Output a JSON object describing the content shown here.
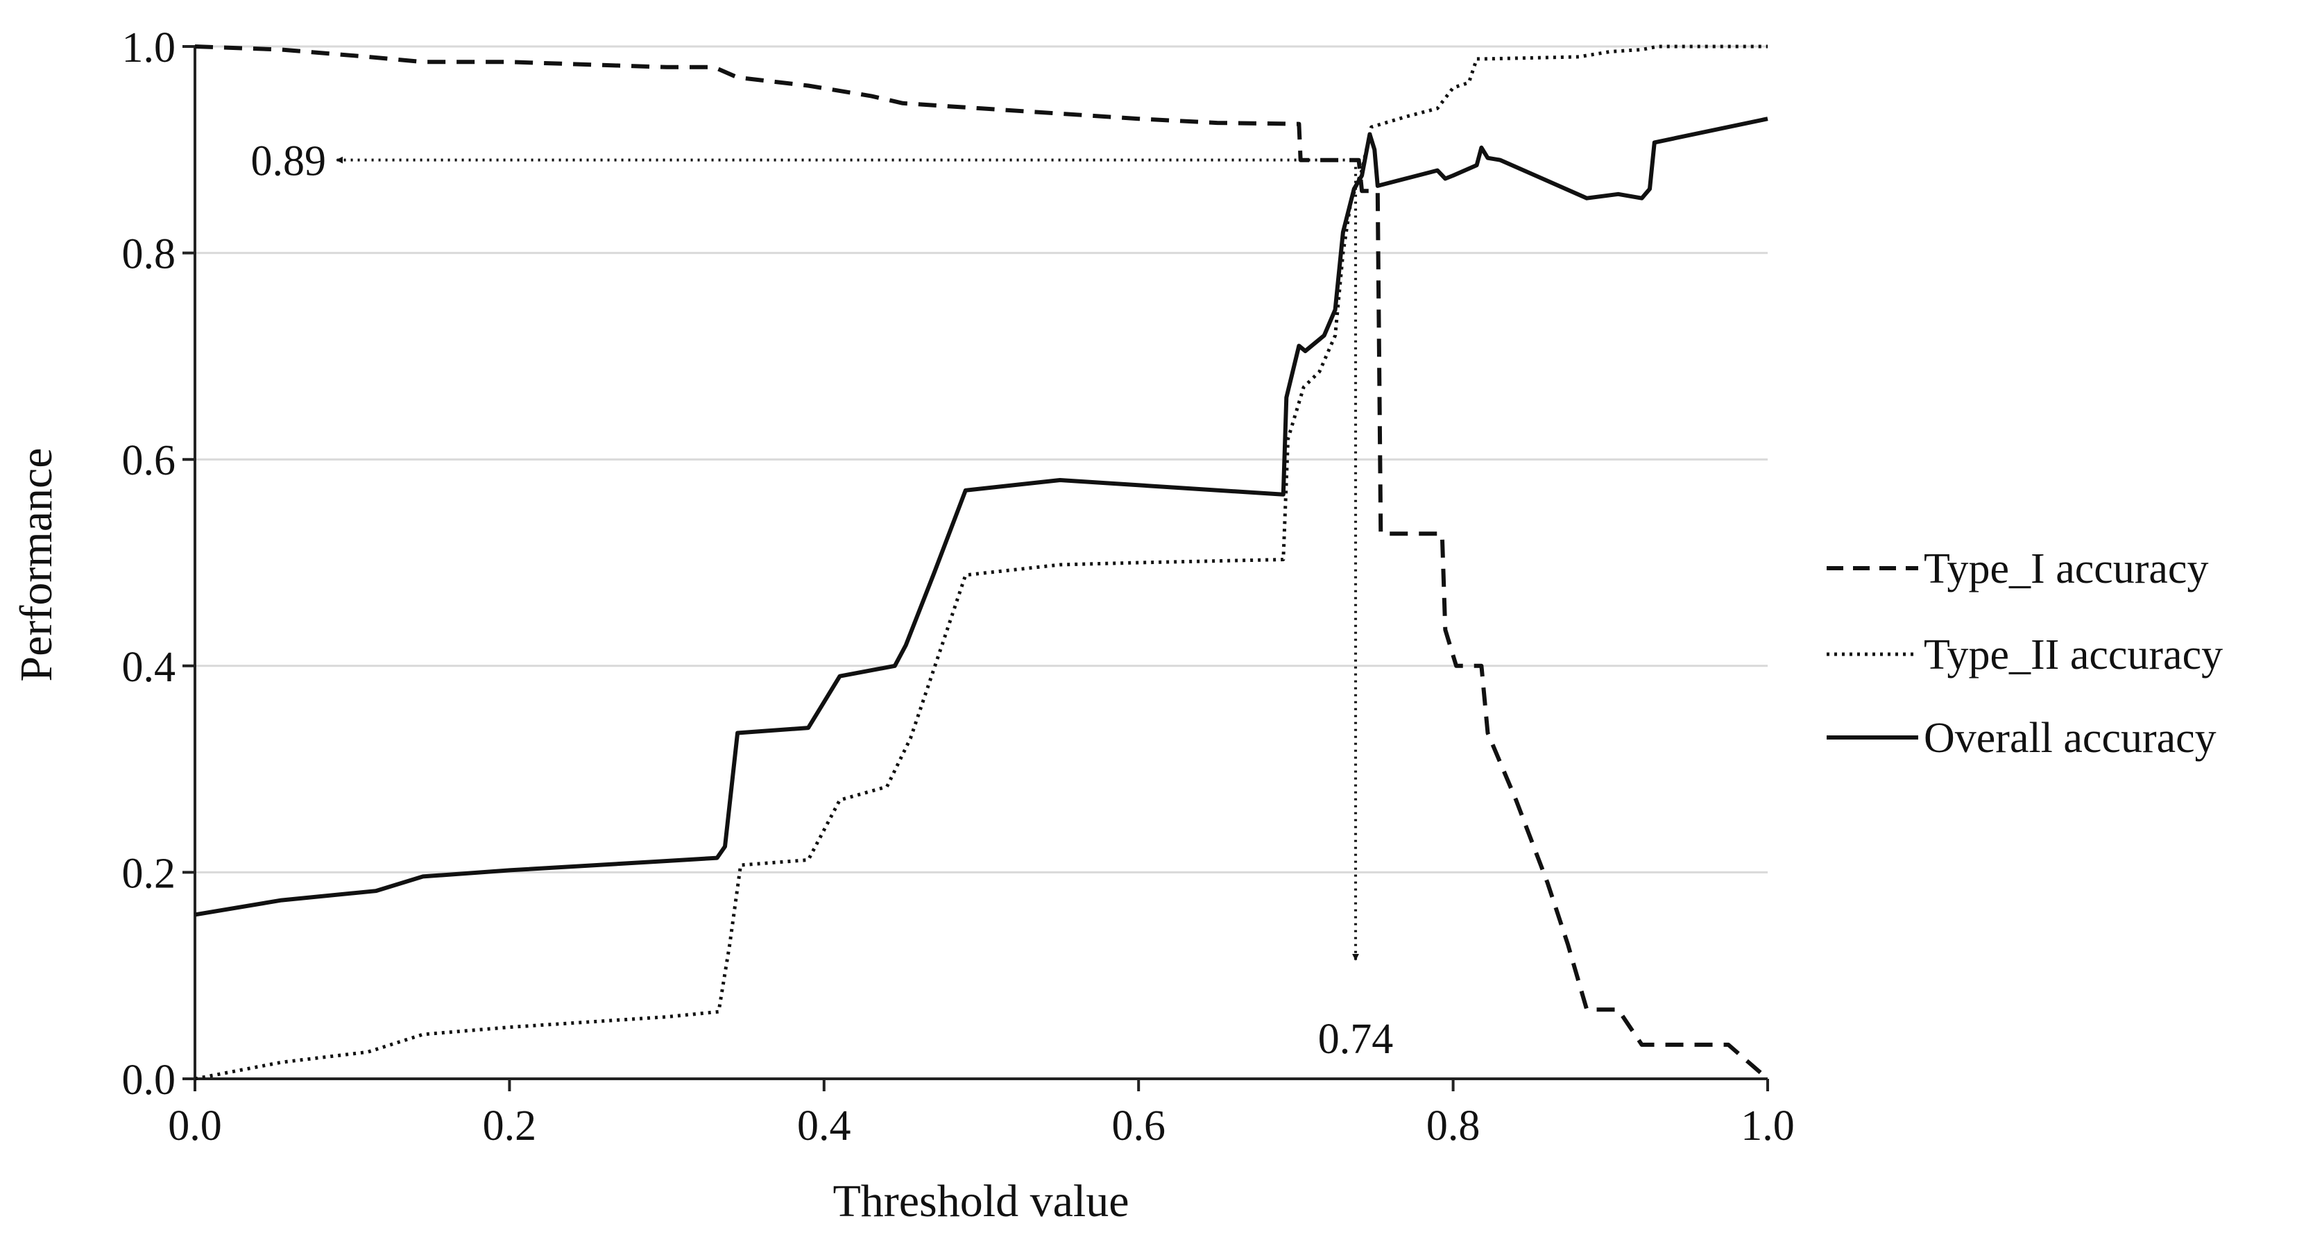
{
  "chart_data": {
    "type": "line",
    "title": "",
    "xlabel": "Threshold value",
    "ylabel": "Performance",
    "xlim": [
      0.0,
      1.0
    ],
    "ylim": [
      0.0,
      1.0
    ],
    "xticks": [
      0.0,
      0.2,
      0.4,
      0.6,
      0.8,
      1.0
    ],
    "yticks": [
      0.0,
      0.2,
      0.4,
      0.6,
      0.8,
      1.0
    ],
    "xtick_labels": [
      "0.0",
      "0.2",
      "0.4",
      "0.6",
      "0.8",
      "1.0"
    ],
    "ytick_labels": [
      "0.0",
      "0.2",
      "0.4",
      "0.6",
      "0.8",
      "1.0"
    ],
    "grid": "horizontal",
    "legend_position": "right",
    "colors": {
      "line": "#111111",
      "grid": "#d9d9d9",
      "axis": "#222222"
    },
    "series": [
      {
        "name": "Type_I accuracy",
        "style": "dashed",
        "points": [
          [
            0.0,
            1.0
          ],
          [
            0.055,
            0.997
          ],
          [
            0.11,
            0.99
          ],
          [
            0.145,
            0.985
          ],
          [
            0.2,
            0.985
          ],
          [
            0.3,
            0.98
          ],
          [
            0.33,
            0.98
          ],
          [
            0.345,
            0.97
          ],
          [
            0.39,
            0.962
          ],
          [
            0.43,
            0.952
          ],
          [
            0.45,
            0.945
          ],
          [
            0.5,
            0.94
          ],
          [
            0.6,
            0.93
          ],
          [
            0.65,
            0.926
          ],
          [
            0.7,
            0.925
          ],
          [
            0.702,
            0.925
          ],
          [
            0.703,
            0.89
          ],
          [
            0.74,
            0.89
          ],
          [
            0.742,
            0.86
          ],
          [
            0.752,
            0.86
          ],
          [
            0.754,
            0.528
          ],
          [
            0.793,
            0.528
          ],
          [
            0.795,
            0.435
          ],
          [
            0.802,
            0.4
          ],
          [
            0.818,
            0.4
          ],
          [
            0.822,
            0.335
          ],
          [
            0.84,
            0.27
          ],
          [
            0.86,
            0.19
          ],
          [
            0.873,
            0.13
          ],
          [
            0.885,
            0.067
          ],
          [
            0.905,
            0.067
          ],
          [
            0.92,
            0.033
          ],
          [
            0.975,
            0.033
          ],
          [
            1.0,
            0.0
          ]
        ]
      },
      {
        "name": "Type_II accuracy",
        "style": "dotted",
        "points": [
          [
            0.0,
            0.0
          ],
          [
            0.055,
            0.016
          ],
          [
            0.11,
            0.026
          ],
          [
            0.145,
            0.043
          ],
          [
            0.2,
            0.05
          ],
          [
            0.3,
            0.06
          ],
          [
            0.333,
            0.065
          ],
          [
            0.34,
            0.13
          ],
          [
            0.347,
            0.207
          ],
          [
            0.39,
            0.212
          ],
          [
            0.41,
            0.27
          ],
          [
            0.44,
            0.283
          ],
          [
            0.455,
            0.33
          ],
          [
            0.475,
            0.42
          ],
          [
            0.49,
            0.488
          ],
          [
            0.55,
            0.498
          ],
          [
            0.6,
            0.5
          ],
          [
            0.692,
            0.503
          ],
          [
            0.695,
            0.62
          ],
          [
            0.705,
            0.67
          ],
          [
            0.715,
            0.685
          ],
          [
            0.725,
            0.72
          ],
          [
            0.73,
            0.8
          ],
          [
            0.735,
            0.85
          ],
          [
            0.742,
            0.88
          ],
          [
            0.748,
            0.922
          ],
          [
            0.77,
            0.932
          ],
          [
            0.79,
            0.94
          ],
          [
            0.8,
            0.96
          ],
          [
            0.81,
            0.965
          ],
          [
            0.815,
            0.988
          ],
          [
            0.82,
            0.988
          ],
          [
            0.88,
            0.99
          ],
          [
            0.9,
            0.995
          ],
          [
            0.92,
            0.997
          ],
          [
            0.93,
            1.0
          ],
          [
            1.0,
            1.0
          ]
        ]
      },
      {
        "name": "Overall accuracy",
        "style": "solid",
        "points": [
          [
            0.0,
            0.159
          ],
          [
            0.055,
            0.173
          ],
          [
            0.115,
            0.182
          ],
          [
            0.145,
            0.196
          ],
          [
            0.2,
            0.202
          ],
          [
            0.3,
            0.211
          ],
          [
            0.332,
            0.214
          ],
          [
            0.337,
            0.225
          ],
          [
            0.345,
            0.335
          ],
          [
            0.39,
            0.34
          ],
          [
            0.41,
            0.39
          ],
          [
            0.445,
            0.4
          ],
          [
            0.452,
            0.42
          ],
          [
            0.47,
            0.49
          ],
          [
            0.49,
            0.57
          ],
          [
            0.55,
            0.58
          ],
          [
            0.692,
            0.566
          ],
          [
            0.694,
            0.66
          ],
          [
            0.702,
            0.71
          ],
          [
            0.706,
            0.705
          ],
          [
            0.718,
            0.72
          ],
          [
            0.725,
            0.745
          ],
          [
            0.73,
            0.82
          ],
          [
            0.737,
            0.862
          ],
          [
            0.742,
            0.875
          ],
          [
            0.747,
            0.915
          ],
          [
            0.75,
            0.9
          ],
          [
            0.752,
            0.865
          ],
          [
            0.79,
            0.88
          ],
          [
            0.795,
            0.872
          ],
          [
            0.8,
            0.875
          ],
          [
            0.815,
            0.885
          ],
          [
            0.818,
            0.902
          ],
          [
            0.822,
            0.892
          ],
          [
            0.83,
            0.89
          ],
          [
            0.885,
            0.853
          ],
          [
            0.905,
            0.857
          ],
          [
            0.92,
            0.853
          ],
          [
            0.925,
            0.862
          ],
          [
            0.928,
            0.907
          ],
          [
            1.0,
            0.93
          ]
        ]
      }
    ],
    "annotations": [
      {
        "label": "0.89",
        "type": "horizontal-arrow",
        "from": [
          0.74,
          0.89
        ],
        "to": [
          0.09,
          0.89
        ]
      },
      {
        "label": "0.74",
        "type": "vertical-arrow",
        "from": [
          0.738,
          0.89
        ],
        "to": [
          0.738,
          0.115
        ]
      }
    ]
  }
}
